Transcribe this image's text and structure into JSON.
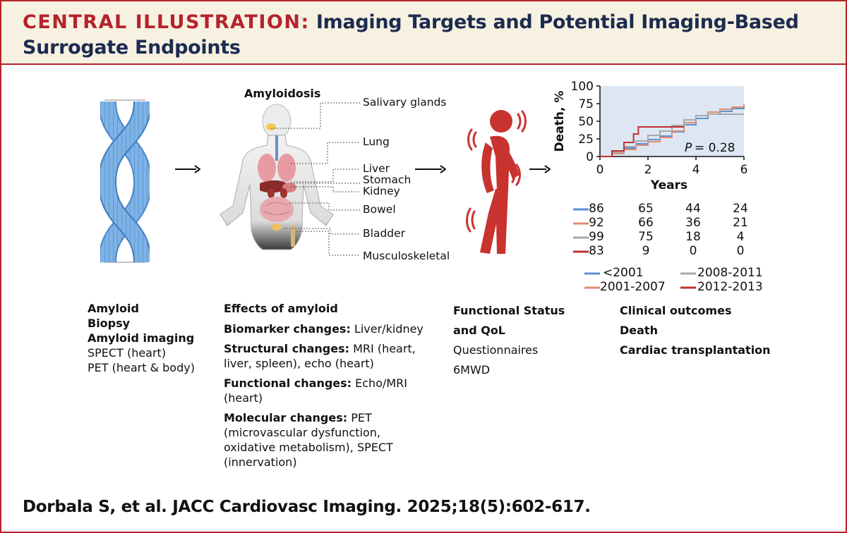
{
  "header": {
    "label": "CENTRAL ILLUSTRATION:",
    "title_line1": "Imaging Targets and Potential Imaging-Based",
    "title_line2": "Surrogate Endpoints"
  },
  "body_diagram": {
    "title": "Amyloidosis",
    "organs": [
      "Salivary glands",
      "Lung",
      "Liver",
      "Stomach",
      "Kidney",
      "Bowel",
      "Bladder",
      "Musculoskeletal"
    ]
  },
  "icons": {
    "fibril": "amyloid-fibril-icon",
    "body": "human-body-organs-icon",
    "person": "person-in-pain-icon",
    "arrow": "right-arrow-icon"
  },
  "colors": {
    "accent": "#b5232b",
    "title": "#1c2b50",
    "header_bg": "#f7f1e1",
    "fibril": "#5b9bd5",
    "person": "#c8332f",
    "plot_bg": "#dde6f3"
  },
  "chart_data": {
    "type": "line",
    "xlabel": "Years",
    "ylabel": "Death, %",
    "xlim": [
      0,
      6
    ],
    "ylim": [
      0,
      100
    ],
    "xticks": [
      0,
      2,
      4,
      6
    ],
    "yticks": [
      0,
      25,
      50,
      75,
      100
    ],
    "annotation": {
      "p_label": "P",
      "p_value": "= 0.28"
    },
    "legend_placement": "bottom",
    "series": [
      {
        "name": "<2001",
        "color": "#5b8fd6",
        "x": [
          0,
          0.5,
          1,
          1.5,
          2,
          2.5,
          3,
          3.5,
          4,
          4.5,
          5,
          5.5,
          6
        ],
        "y": [
          0,
          5,
          12,
          18,
          24,
          29,
          35,
          45,
          54,
          60,
          64,
          68,
          72
        ]
      },
      {
        "name": "2001-2007",
        "color": "#e08d74",
        "x": [
          0,
          0.5,
          1,
          1.5,
          2,
          2.5,
          3,
          3.5,
          4,
          4.5,
          5,
          5.5,
          6
        ],
        "y": [
          0,
          4,
          10,
          16,
          21,
          27,
          36,
          48,
          58,
          63,
          67,
          70,
          74
        ]
      },
      {
        "name": "2008-2011",
        "color": "#a8a8a8",
        "x": [
          0,
          0.5,
          1,
          1.5,
          2,
          2.5,
          3,
          3.5,
          4,
          4.5,
          5,
          5.5,
          6
        ],
        "y": [
          0,
          6,
          14,
          22,
          30,
          36,
          44,
          52,
          58,
          60,
          60,
          60,
          60
        ]
      },
      {
        "name": "2012-2013",
        "color": "#c0302f",
        "x": [
          0,
          0.5,
          1,
          1.4,
          1.6,
          2,
          2.5,
          2.7,
          3,
          3.5
        ],
        "y": [
          0,
          8,
          20,
          32,
          42,
          42,
          42,
          42,
          42,
          42
        ]
      }
    ],
    "risk_table": {
      "time_points": [
        "0",
        "2",
        "4",
        "6"
      ],
      "rows": [
        {
          "color": "#5b8fd6",
          "values": [
            "86",
            "65",
            "44",
            "24"
          ]
        },
        {
          "color": "#e08d74",
          "values": [
            "92",
            "66",
            "36",
            "21"
          ]
        },
        {
          "color": "#a8a8a8",
          "values": [
            "99",
            "75",
            "18",
            "4"
          ]
        },
        {
          "color": "#c0302f",
          "values": [
            "83",
            "9",
            "0",
            "0"
          ]
        }
      ]
    }
  },
  "columns": {
    "col1": {
      "bold_lines": [
        "Amyloid",
        "Biopsy",
        "Amyloid imaging"
      ],
      "lines": [
        "SPECT (heart)",
        "PET (heart & body)"
      ]
    },
    "col2": {
      "title": "Effects of amyloid",
      "items": [
        {
          "label": "Biomarker changes:",
          "rest": " Liver/kidney",
          "cont": []
        },
        {
          "label": "Structural changes:",
          "rest": " MRI (heart,",
          "cont": [
            "liver, spleen), echo (heart)"
          ]
        },
        {
          "label": "Functional changes:",
          "rest": " Echo/MRI",
          "cont": [
            "(heart)"
          ]
        },
        {
          "label": "Molecular changes:",
          "rest": " PET",
          "cont": [
            "(microvascular dysfunction,",
            "oxidative metabolism), SPECT",
            "(innervation)"
          ]
        }
      ]
    },
    "col3": {
      "title_line1": "Functional Status",
      "title_line2": "and QoL",
      "items": [
        "Questionnaires",
        "6MWD"
      ]
    },
    "col4": {
      "title": "Clinical outcomes",
      "items": [
        "Death",
        "Cardiac transplantation"
      ]
    }
  },
  "citation": "Dorbala S, et al. JACC Cardiovasc Imaging. 2025;18(5):602-617."
}
